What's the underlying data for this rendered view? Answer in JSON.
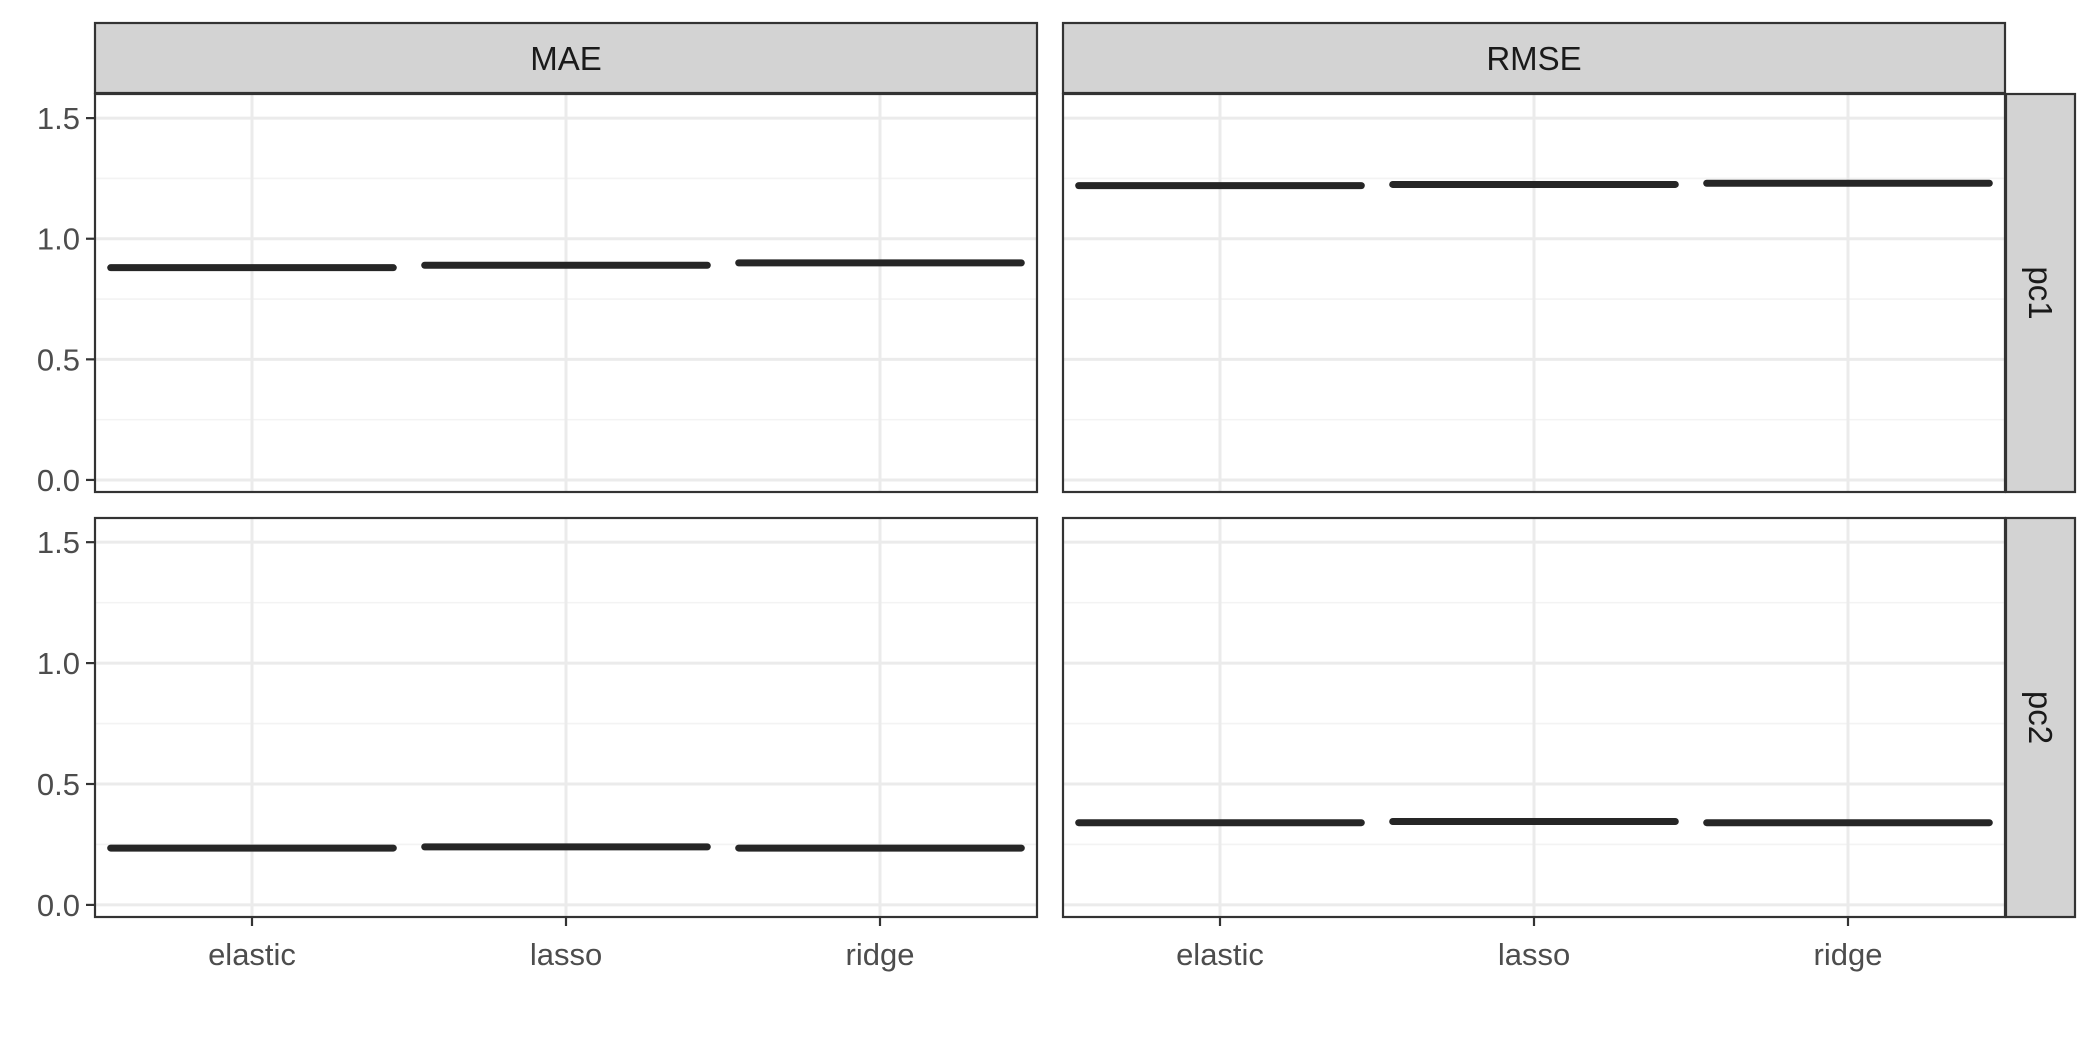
{
  "chart_data": {
    "type": "crossbar",
    "x_categories": [
      "elastic",
      "lasso",
      "ridge"
    ],
    "col_facets": [
      "MAE",
      "RMSE"
    ],
    "row_facets": [
      "pc1",
      "pc2"
    ],
    "y_ticks": [
      "0.0",
      "0.5",
      "1.0",
      "1.5"
    ],
    "ylim": [
      -0.05,
      1.6
    ],
    "grid": true,
    "theme": "bw",
    "panels": [
      {
        "col": "MAE",
        "row": "pc1",
        "values": [
          0.88,
          0.89,
          0.9
        ]
      },
      {
        "col": "RMSE",
        "row": "pc1",
        "values": [
          1.22,
          1.225,
          1.23
        ]
      },
      {
        "col": "MAE",
        "row": "pc2",
        "values": [
          0.235,
          0.24,
          0.235
        ]
      },
      {
        "col": "RMSE",
        "row": "pc2",
        "values": [
          0.34,
          0.345,
          0.34
        ]
      }
    ],
    "colors": {
      "strip_fill": "#d3d3d3",
      "panel_border": "#333333",
      "grid_major": "#ebebeb",
      "grid_minor": "#f3f3f3",
      "bar": "#262626",
      "text": "#333333"
    }
  }
}
